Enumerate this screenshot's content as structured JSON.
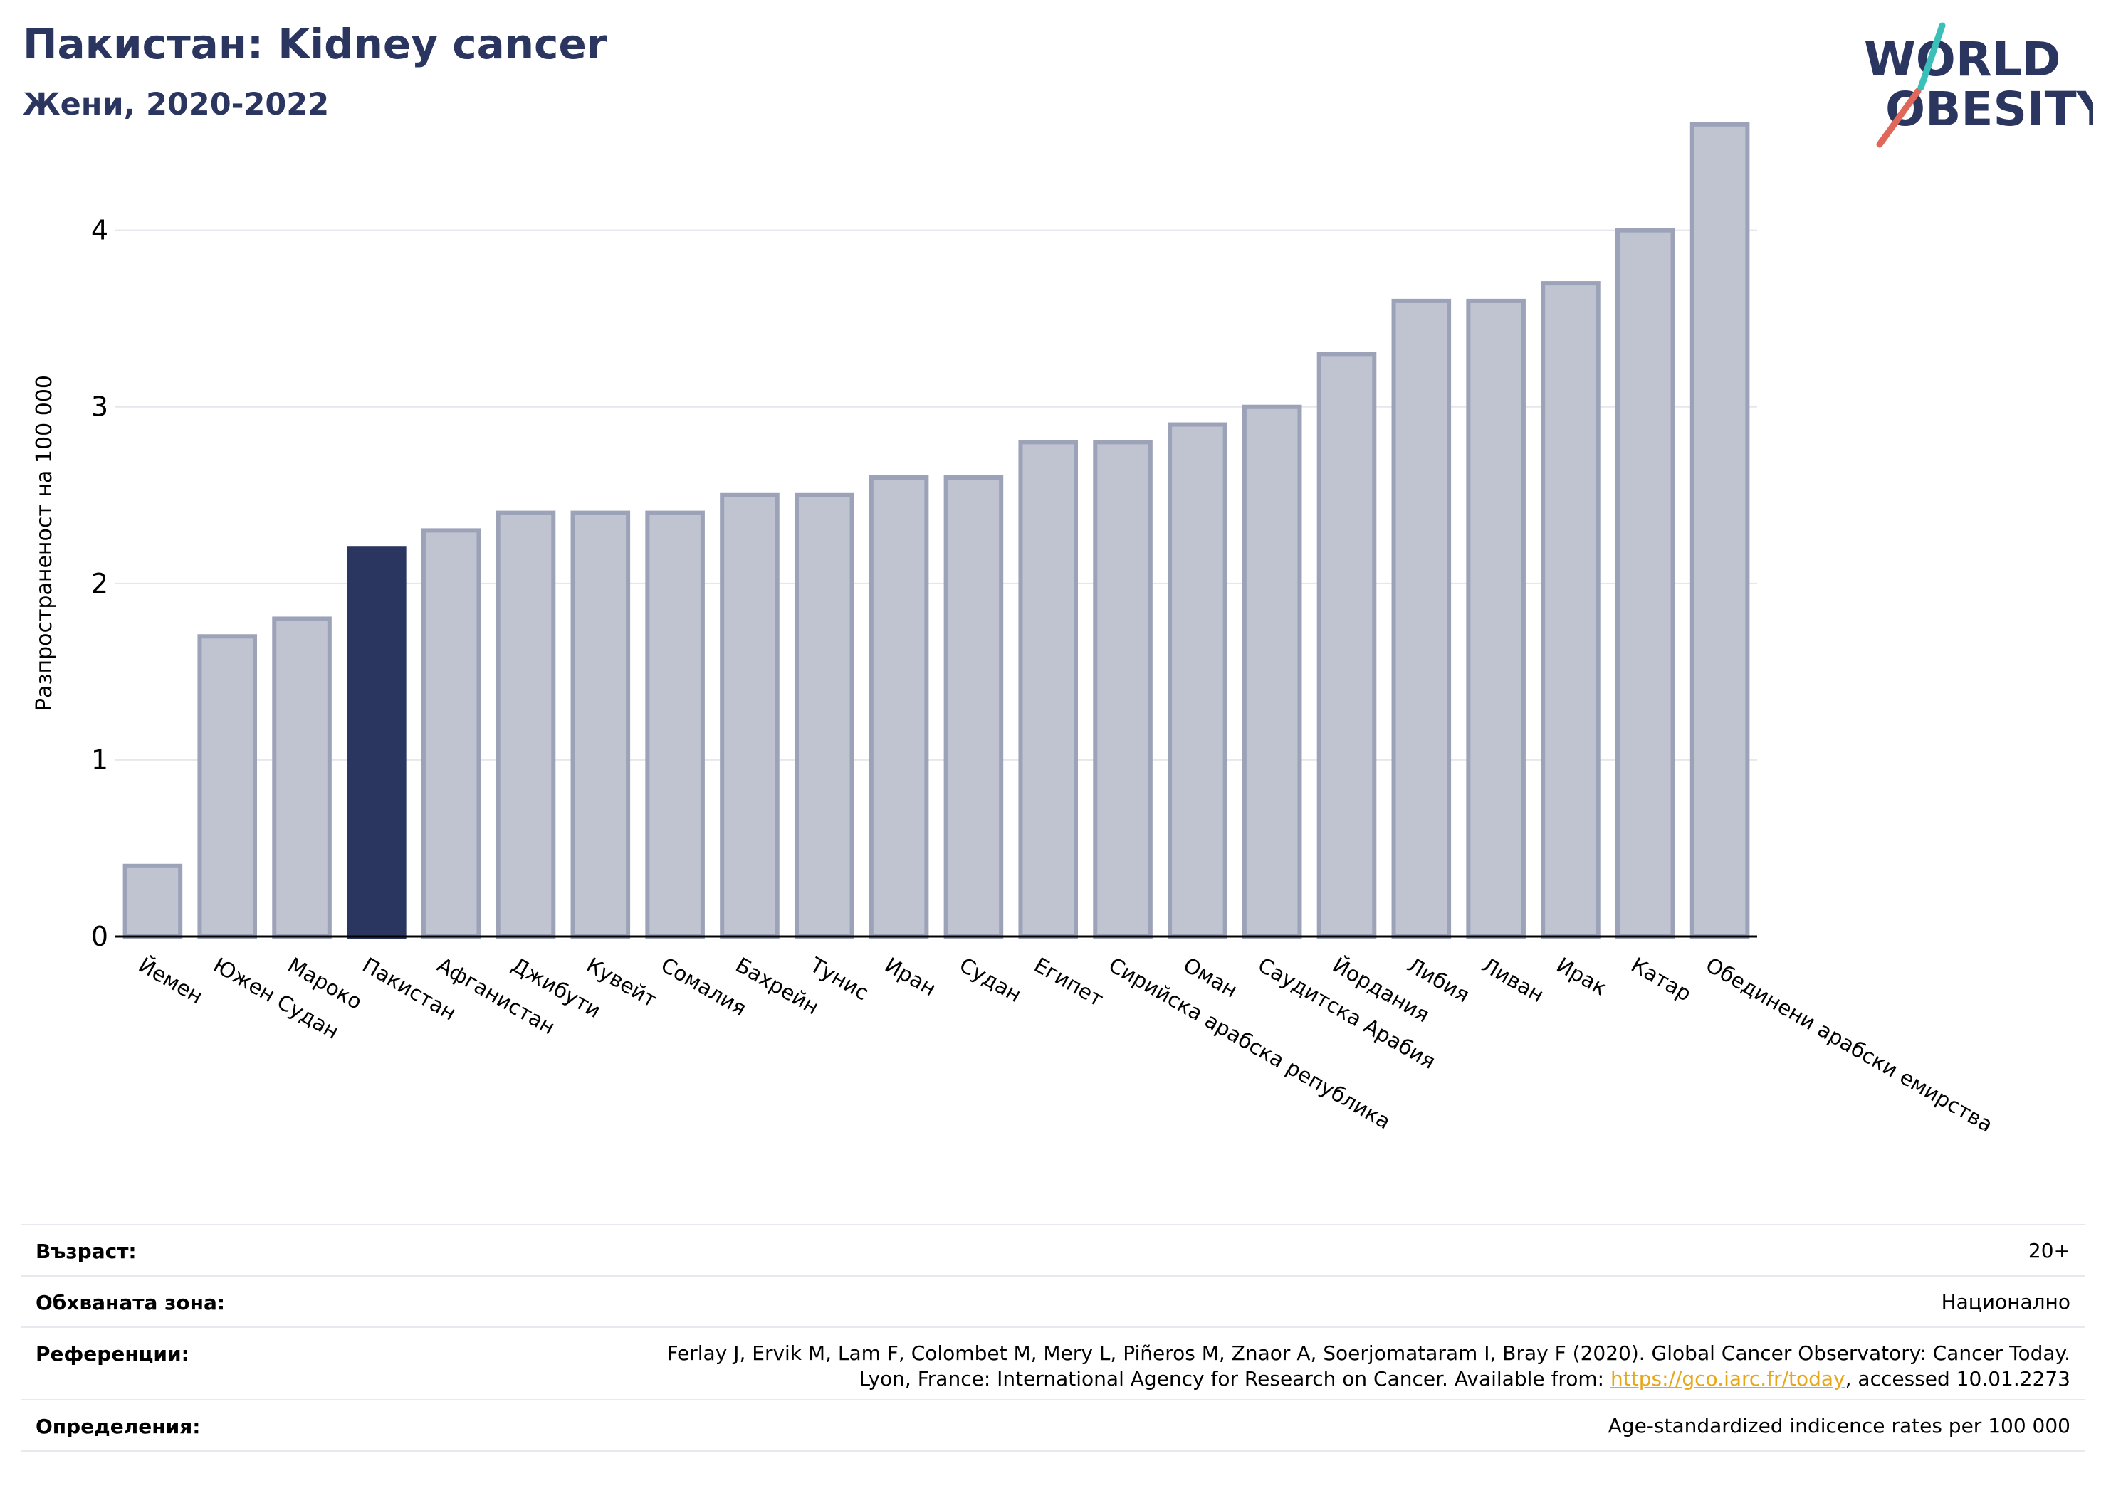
{
  "header": {
    "title": "Пакистан: Kidney cancer",
    "subtitle": "Жени, 2020-2022"
  },
  "logo": {
    "line1": "WORLD",
    "line2": "OBESITY"
  },
  "colors": {
    "highlight": "#2b3660",
    "bar_fill": "#c0c3d0",
    "bar_stroke": "#9ca2b8",
    "title": "#2b3660",
    "link": "#e8a619"
  },
  "chart_data": {
    "type": "bar",
    "title": "Пакистан: Kidney cancer",
    "subtitle": "Жени, 2020-2022",
    "ylabel": "Разпространеност  на 100 000",
    "xlabel": "",
    "ylim": [
      0,
      4.7
    ],
    "yticks": [
      0,
      1,
      2,
      3,
      4
    ],
    "grid": true,
    "highlight": "Пакистан",
    "categories": [
      "Йемен",
      "Южен Судан",
      "Мароко",
      "Пакистан",
      "Афганистан",
      "Джибути",
      "Кувейт",
      "Сомалия",
      "Бахрейн",
      "Тунис",
      "Иран",
      "Судан",
      "Египет",
      "Сирийска арабска република",
      "Оман",
      "Саудитска Арабия",
      "Йордания",
      "Либия",
      "Ливан",
      "Ирак",
      "Катар",
      "Обединени арабски емирства"
    ],
    "values": [
      0.4,
      1.7,
      1.8,
      2.2,
      2.3,
      2.4,
      2.4,
      2.4,
      2.5,
      2.5,
      2.6,
      2.6,
      2.8,
      2.8,
      2.9,
      3.0,
      3.3,
      3.6,
      3.6,
      3.7,
      4.0,
      4.6
    ]
  },
  "footer": {
    "rows": [
      {
        "key": "Възраст:",
        "value": "20+"
      },
      {
        "key": "Обхваната зона:",
        "value": "Национално"
      },
      {
        "key": "Референции:",
        "line1": "Ferlay J, Ervik M, Lam F, Colombet M, Mery L, Piñeros M, Znaor A, Soerjomataram I, Bray F (2020). Global Cancer Observatory: Cancer Today.",
        "line2_pre": "Lyon, France: International Agency for Research on Cancer. Available from: ",
        "link": "https://gco.iarc.fr/today",
        "line2_post": ", accessed 10.01.2273"
      },
      {
        "key": "Определения:",
        "value": "Age-standardized indicence rates per 100 000"
      }
    ]
  }
}
